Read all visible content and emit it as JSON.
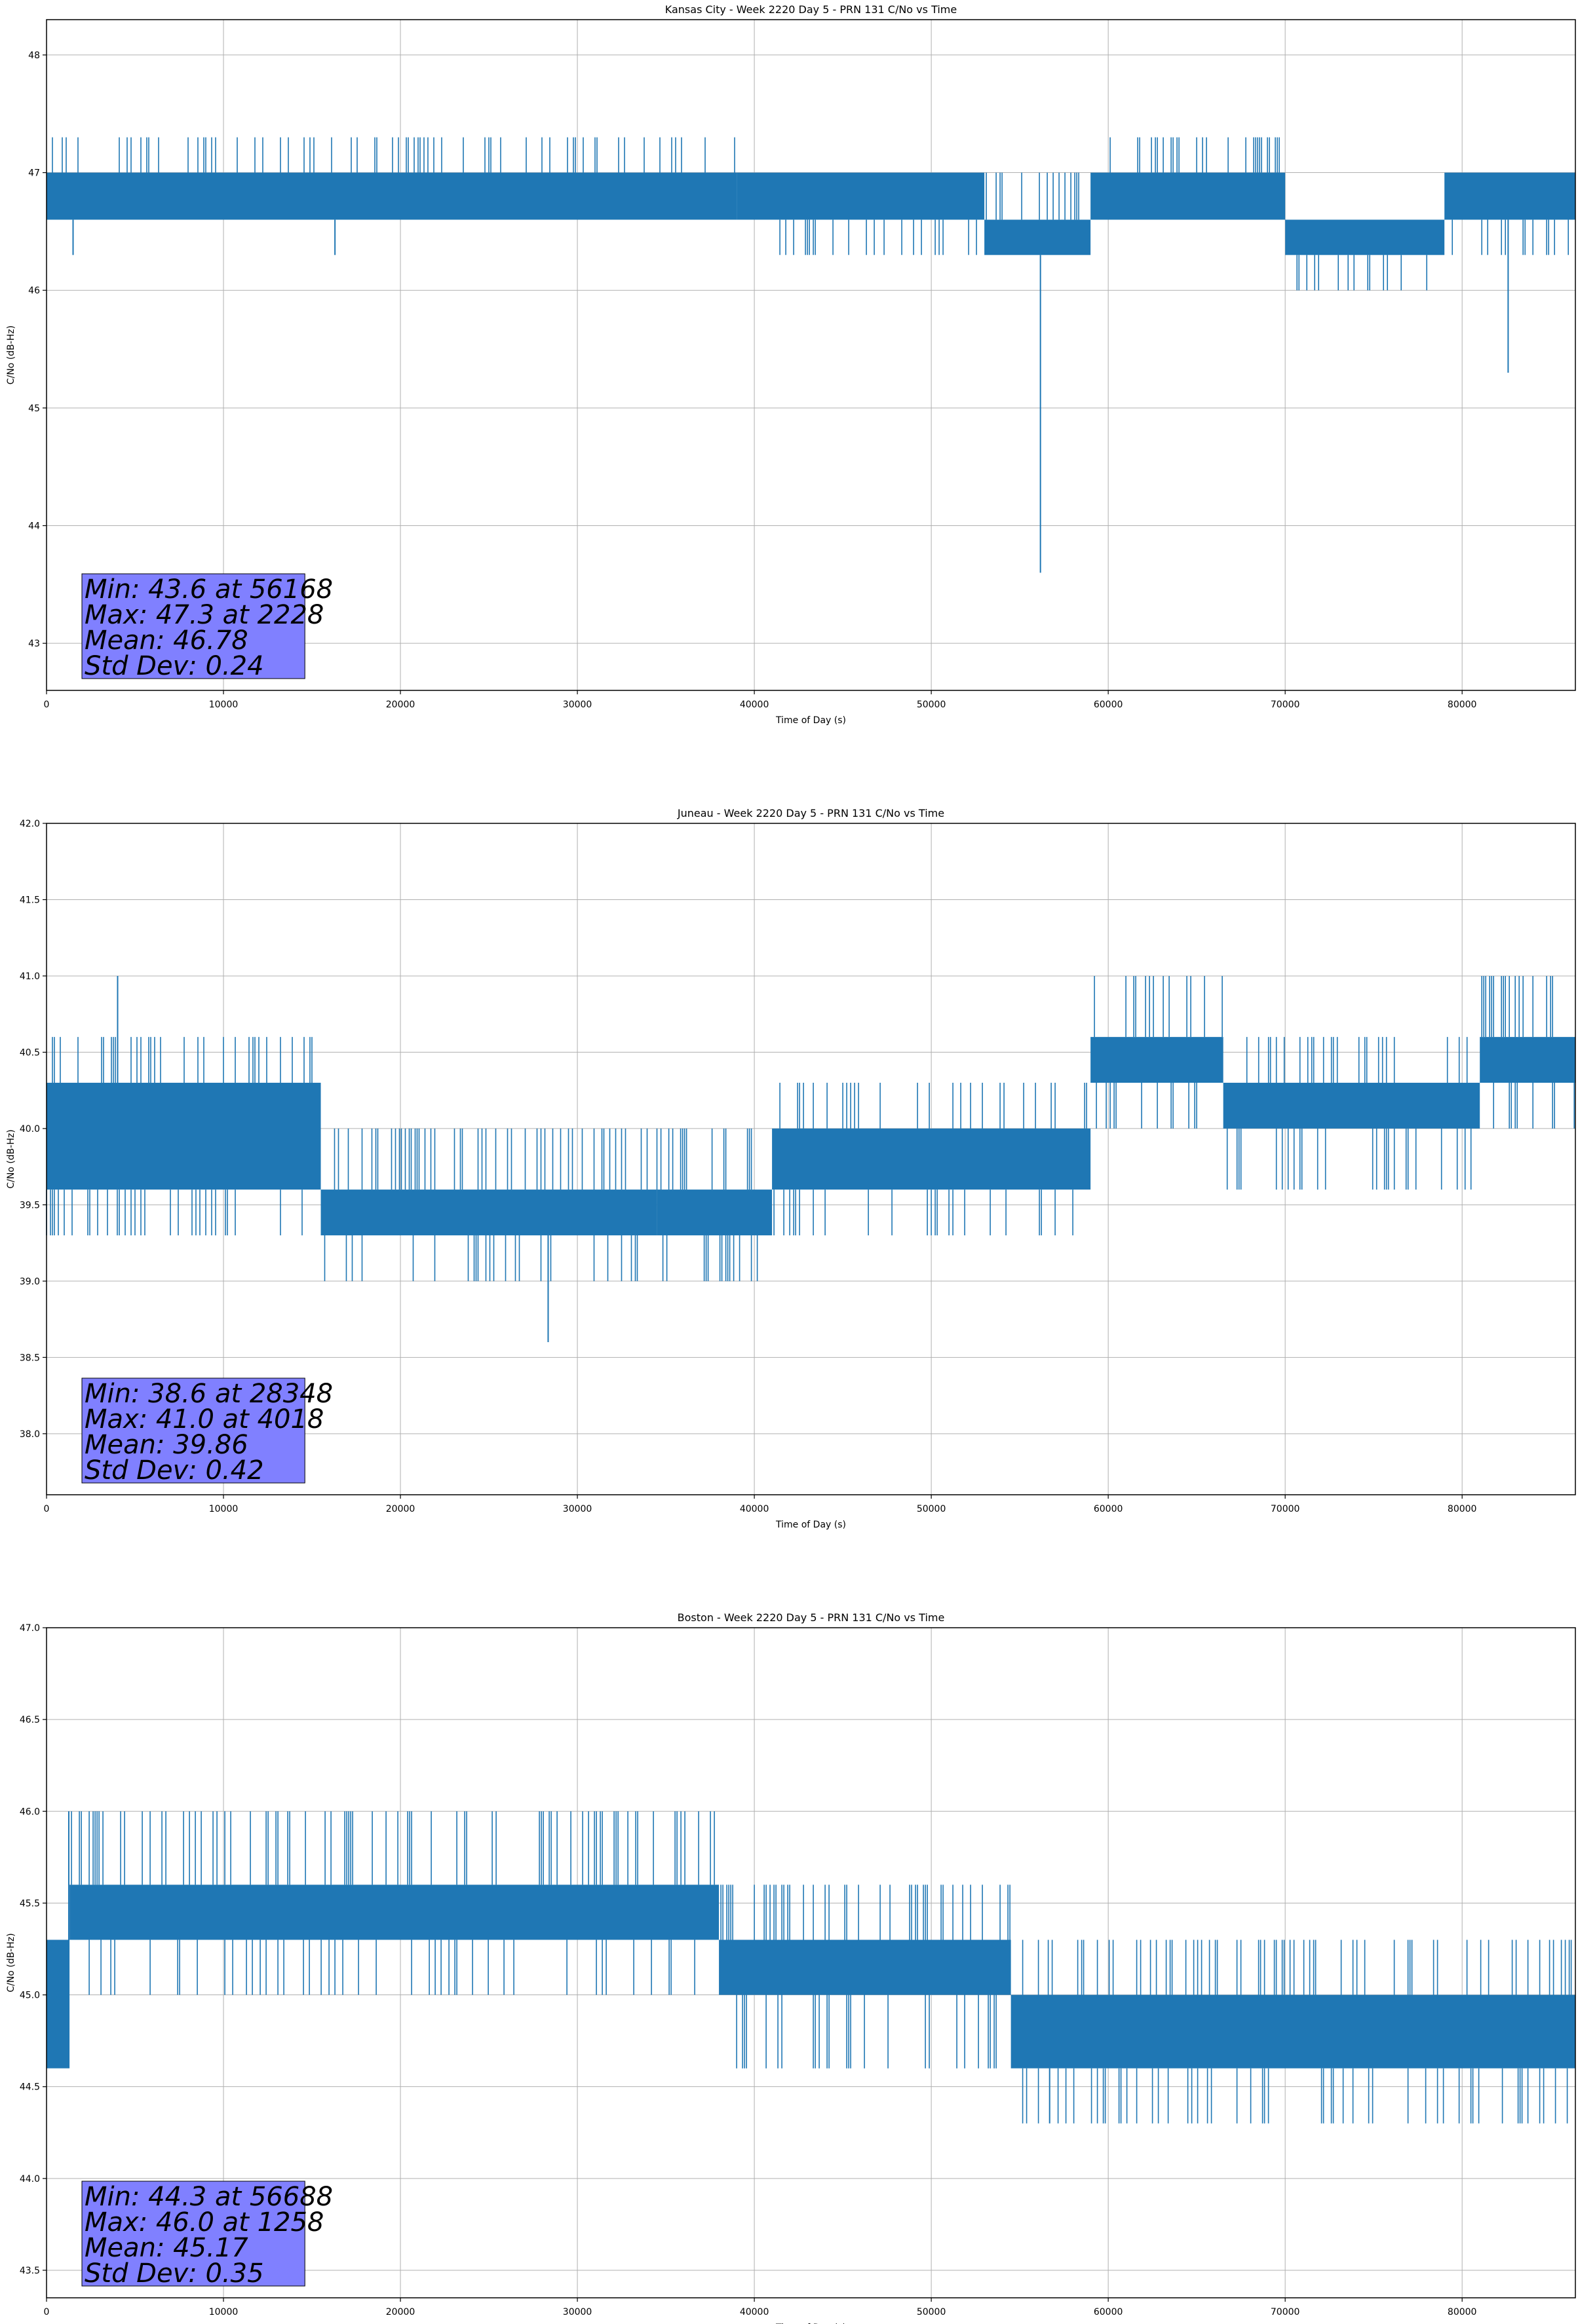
{
  "chart_data": [
    {
      "type": "line",
      "title": "Kansas City - Week 2220 Day 5 - PRN 131 C/No vs Time",
      "xlabel": "Time of Day (s)",
      "ylabel": "C/No (dB-Hz)",
      "xlim": [
        0,
        86400
      ],
      "ylim": [
        42.6,
        48.3
      ],
      "xticks": [
        0,
        10000,
        20000,
        30000,
        40000,
        50000,
        60000,
        70000,
        80000
      ],
      "yticks": [
        43,
        44,
        45,
        46,
        47,
        48
      ],
      "ytick_labels": [
        "43",
        "44",
        "45",
        "46",
        "47",
        "48"
      ],
      "grid": true,
      "series_color": "#1f77b4",
      "stats_box_color": "#8080ff",
      "levels": [
        {
          "x": [
            0,
            39000
          ],
          "low": 46.6,
          "high": 47.0,
          "spikes_high": 47.3
        },
        {
          "x": [
            39000,
            53000
          ],
          "low": 46.6,
          "high": 47.0,
          "spikes_low": 46.3
        },
        {
          "x": [
            53000,
            59000
          ],
          "low": 46.3,
          "high": 46.6,
          "spikes_high": 47.0
        },
        {
          "x": [
            59000,
            70000
          ],
          "low": 46.6,
          "high": 47.0,
          "spikes_high": 47.3
        },
        {
          "x": [
            70000,
            79000
          ],
          "low": 46.3,
          "high": 46.6,
          "spikes_low": 46.0
        },
        {
          "x": [
            79000,
            86400
          ],
          "low": 46.6,
          "high": 47.0,
          "spikes_low": 46.3
        }
      ],
      "dips": [
        {
          "x": 56168,
          "y": 43.6
        },
        {
          "x": 82600,
          "y": 45.3
        },
        {
          "x": 1500,
          "y": 46.3
        },
        {
          "x": 16300,
          "y": 46.3
        }
      ],
      "stats": {
        "min": "Min: 43.6 at 56168",
        "max": "Max: 47.3 at 2228",
        "mean": "Mean: 46.78",
        "std": "Std Dev: 0.24"
      }
    },
    {
      "type": "line",
      "title": "Juneau - Week 2220 Day 5 - PRN 131 C/No vs Time",
      "xlabel": "Time of Day (s)",
      "ylabel": "C/No (dB-Hz)",
      "xlim": [
        0,
        86400
      ],
      "ylim": [
        37.6,
        42.0
      ],
      "xticks": [
        0,
        10000,
        20000,
        30000,
        40000,
        50000,
        60000,
        70000,
        80000
      ],
      "yticks": [
        38.0,
        38.5,
        39.0,
        39.5,
        40.0,
        40.5,
        41.0,
        41.5,
        42.0
      ],
      "ytick_labels": [
        "38.0",
        "38.5",
        "39.0",
        "39.5",
        "40.0",
        "40.5",
        "41.0",
        "41.5",
        "42.0"
      ],
      "grid": true,
      "series_color": "#1f77b4",
      "stats_box_color": "#8080ff",
      "levels": [
        {
          "x": [
            0,
            15500
          ],
          "low": 39.6,
          "high": 40.3,
          "spikes_high": 40.6,
          "spikes_low": 39.3
        },
        {
          "x": [
            15500,
            34500
          ],
          "low": 39.3,
          "high": 39.6,
          "spikes_high": 40.0,
          "spikes_low": 39.0
        },
        {
          "x": [
            34500,
            41000
          ],
          "low": 39.3,
          "high": 39.6,
          "spikes_high": 40.0,
          "spikes_low": 39.0
        },
        {
          "x": [
            41000,
            59000
          ],
          "low": 39.6,
          "high": 40.0,
          "spikes_high": 40.3,
          "spikes_low": 39.3
        },
        {
          "x": [
            59000,
            66500
          ],
          "low": 40.3,
          "high": 40.6,
          "spikes_high": 41.0,
          "spikes_low": 40.0
        },
        {
          "x": [
            66500,
            81000
          ],
          "low": 40.0,
          "high": 40.3,
          "spikes_high": 40.6,
          "spikes_low": 39.6
        },
        {
          "x": [
            81000,
            86400
          ],
          "low": 40.3,
          "high": 40.6,
          "spikes_high": 41.0,
          "spikes_low": 40.0
        }
      ],
      "dips": [
        {
          "x": 28348,
          "y": 38.6
        },
        {
          "x": 4018,
          "y": 41.0
        }
      ],
      "stats": {
        "min": "Min: 38.6 at 28348",
        "max": "Max: 41.0 at 4018",
        "mean": "Mean: 39.86",
        "std": "Std Dev: 0.42"
      }
    },
    {
      "type": "line",
      "title": "Boston - Week 2220 Day 5 - PRN 131 C/No vs Time",
      "xlabel": "Time of Day (s)",
      "ylabel": "C/No (dB-Hz)",
      "xlim": [
        0,
        86400
      ],
      "ylim": [
        43.35,
        47.0
      ],
      "xticks": [
        0,
        10000,
        20000,
        30000,
        40000,
        50000,
        60000,
        70000,
        80000
      ],
      "yticks": [
        43.5,
        44.0,
        44.5,
        45.0,
        45.5,
        46.0,
        46.5,
        47.0
      ],
      "ytick_labels": [
        "43.5",
        "44.0",
        "44.5",
        "45.0",
        "45.5",
        "46.0",
        "46.5",
        "47.0"
      ],
      "grid": true,
      "series_color": "#1f77b4",
      "stats_box_color": "#8080ff",
      "levels": [
        {
          "x": [
            0,
            1300
          ],
          "low": 44.6,
          "high": 45.3,
          "spikes_high": 45.3
        },
        {
          "x": [
            1300,
            38000
          ],
          "low": 45.3,
          "high": 45.6,
          "spikes_high": 46.0,
          "spikes_low": 45.0
        },
        {
          "x": [
            38000,
            54500
          ],
          "low": 45.0,
          "high": 45.3,
          "spikes_high": 45.6,
          "spikes_low": 44.6
        },
        {
          "x": [
            54500,
            86400
          ],
          "low": 44.6,
          "high": 45.0,
          "spikes_high": 45.3,
          "spikes_low": 44.3
        }
      ],
      "dips": [
        {
          "x": 56688,
          "y": 44.3
        },
        {
          "x": 1258,
          "y": 46.0
        }
      ],
      "stats": {
        "min": "Min: 44.3 at 56688",
        "max": "Max: 46.0 at 1258",
        "mean": "Mean: 45.17",
        "std": "Std Dev: 0.35"
      }
    }
  ]
}
